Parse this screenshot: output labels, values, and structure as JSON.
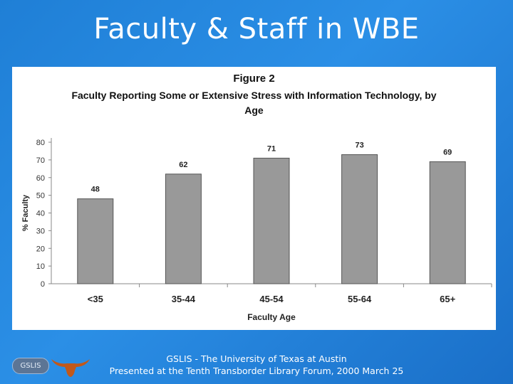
{
  "slide": {
    "title": "Faculty & Staff in WBE"
  },
  "chart_data": {
    "type": "bar",
    "figure_label": "Figure 2",
    "title": "Faculty Reporting Some or Extensive Stress with Information Technology, by Age",
    "xlabel": "Faculty Age",
    "ylabel": "% Faculty",
    "categories": [
      "<35",
      "35-44",
      "45-54",
      "55-64",
      "65+"
    ],
    "values": [
      48,
      62,
      71,
      73,
      69
    ],
    "ylim": [
      0,
      80
    ],
    "yticks": [
      0,
      10,
      20,
      30,
      40,
      50,
      60,
      70,
      80
    ],
    "grid": false,
    "legend": "none",
    "bar_color": "#999999"
  },
  "footer": {
    "line1": "GSLIS - The University of Texas at Austin",
    "line2": "Presented at the Tenth Transborder Library Forum, 2000 March 25"
  },
  "logos": {
    "badge_text": "GSLIS",
    "longhorn_icon": "longhorn-icon",
    "longhorn_color": "#c1581a"
  }
}
